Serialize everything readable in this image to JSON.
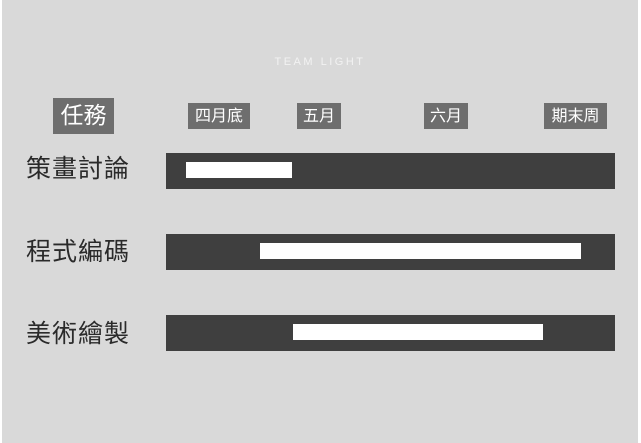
{
  "brand": "TEAM LIGHT",
  "task_header": "任務",
  "timeline": [
    "四月底",
    "五月",
    "六月",
    "期末周"
  ],
  "tasks": [
    {
      "label": "策畫討論",
      "start": 0.045,
      "end": 0.28
    },
    {
      "label": "程式編碼",
      "start": 0.21,
      "end": 0.925
    },
    {
      "label": "美術繪製",
      "start": 0.282,
      "end": 0.84
    }
  ],
  "colors": {
    "background": "#d9d9d9",
    "track": "#3f3f3f",
    "bar": "#ffffff",
    "tag": "#6e6e6e"
  }
}
